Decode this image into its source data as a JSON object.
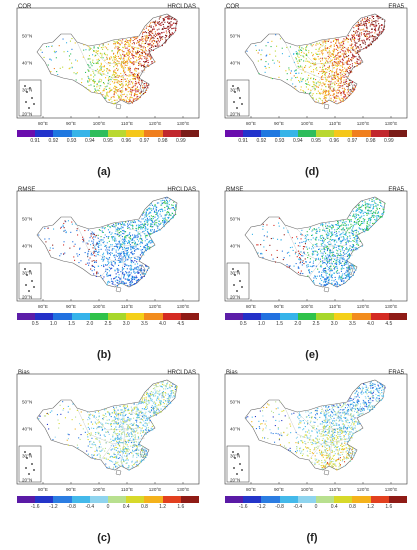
{
  "panels": [
    {
      "id": "a",
      "label": "(a)",
      "var": "COR",
      "source": "HRCLDAS",
      "scheme": "cor",
      "ticks": [
        "0.91",
        "0.92",
        "0.93",
        "0.94",
        "0.95",
        "0.96",
        "0.97",
        "0.98",
        "0.99"
      ]
    },
    {
      "id": "d",
      "label": "(d)",
      "var": "COR",
      "source": "ERA5",
      "scheme": "cor",
      "ticks": [
        "0.91",
        "0.92",
        "0.93",
        "0.94",
        "0.95",
        "0.96",
        "0.97",
        "0.98",
        "0.99"
      ]
    },
    {
      "id": "b",
      "label": "(b)",
      "var": "RMSE",
      "source": "HRCLDAS",
      "scheme": "rmse",
      "ticks": [
        "0.5",
        "1.0",
        "1.5",
        "2.0",
        "2.5",
        "3.0",
        "3.5",
        "4.0",
        "4.5"
      ]
    },
    {
      "id": "e",
      "label": "(e)",
      "var": "RMSE",
      "source": "ERA5",
      "scheme": "rmse",
      "ticks": [
        "0.5",
        "1.0",
        "1.5",
        "2.0",
        "2.5",
        "3.0",
        "3.5",
        "4.0",
        "4.5"
      ]
    },
    {
      "id": "c",
      "label": "(c)",
      "var": "Bias",
      "source": "HRCLDAS",
      "scheme": "bias",
      "ticks": [
        "-1.6",
        "-1.2",
        "-0.8",
        "-0.4",
        "0",
        "0.4",
        "0.8",
        "1.2",
        "1.6"
      ]
    },
    {
      "id": "f",
      "label": "(f)",
      "var": "Bias",
      "source": "ERA5",
      "scheme": "bias",
      "ticks": [
        "-1.6",
        "-1.2",
        "-0.8",
        "-0.4",
        "0",
        "0.4",
        "0.8",
        "1.2",
        "1.6"
      ]
    }
  ],
  "lon_ticks": [
    "80°E",
    "90°E",
    "100°E",
    "110°E",
    "120°E",
    "130°E"
  ],
  "lat_ticks": [
    "50°N",
    "40°N",
    "30°N",
    "20°N"
  ],
  "palettes": {
    "cor": [
      "#6a0dad",
      "#2233cc",
      "#1f78e0",
      "#37b4e8",
      "#2ebd5c",
      "#b9d830",
      "#f5c71a",
      "#f07f1e",
      "#c1272d",
      "#7a1b17"
    ],
    "rmse": [
      "#5c1ea8",
      "#2430c8",
      "#2171e0",
      "#35b3ea",
      "#2fc24a",
      "#a7d72a",
      "#f4d018",
      "#f28c1d",
      "#d42a22",
      "#8f1b16"
    ],
    "bias": [
      "#5a1aa6",
      "#2435c9",
      "#2b7de2",
      "#44b9ea",
      "#8fd4ee",
      "#b8e08f",
      "#d7d92a",
      "#f4b21c",
      "#e2401f",
      "#8f1b16"
    ]
  }
}
